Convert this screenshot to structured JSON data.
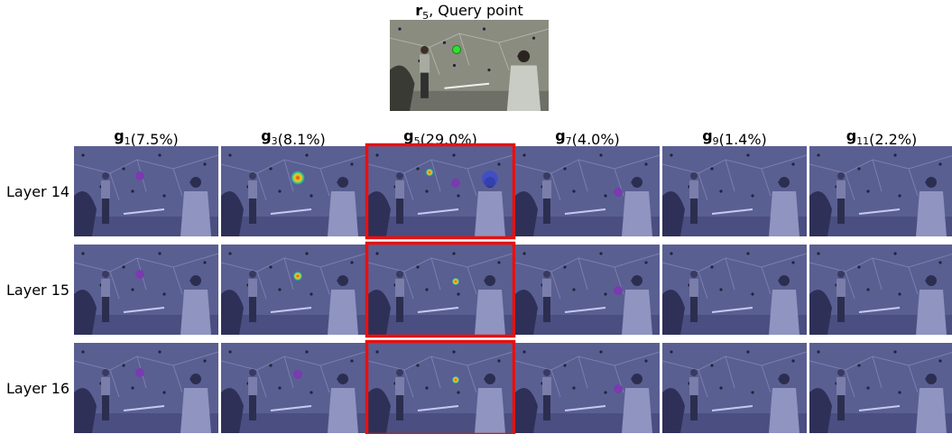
{
  "figure": {
    "query": {
      "symbol": "r",
      "subscript": "5",
      "text": ", Query point"
    },
    "columns": [
      {
        "symbol": "g",
        "subscript": "1",
        "share": "(7.5%)"
      },
      {
        "symbol": "g",
        "subscript": "3",
        "share": "(8.1%)"
      },
      {
        "symbol": "g",
        "subscript": "5",
        "share": "(29.0%)"
      },
      {
        "symbol": "g",
        "subscript": "7",
        "share": "(4.0%)"
      },
      {
        "symbol": "g",
        "subscript": "9",
        "share": "(1.4%)"
      },
      {
        "symbol": "g",
        "subscript": "11",
        "share": "(2.2%)"
      }
    ],
    "rows": [
      "Layer 14",
      "Layer 15",
      "Layer 16"
    ]
  }
}
